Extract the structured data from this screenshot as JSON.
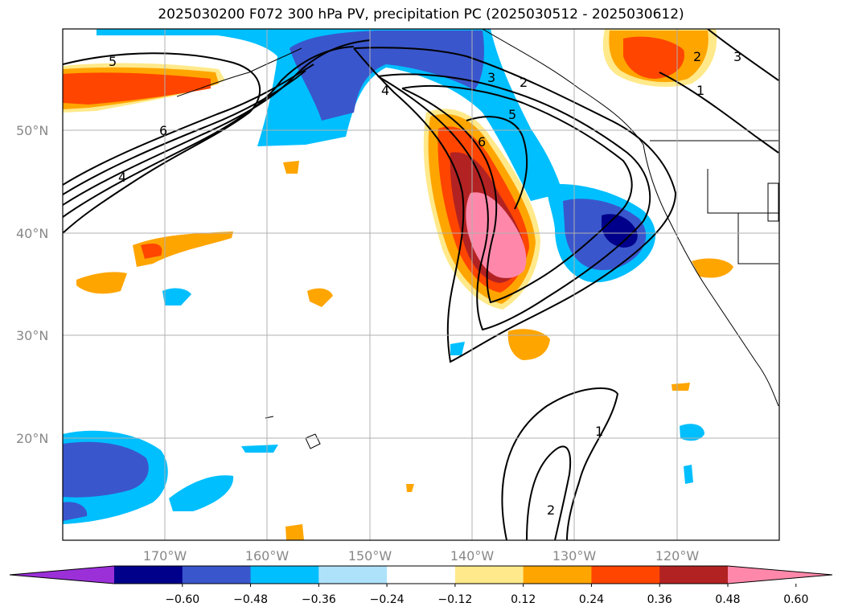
{
  "title": "2025030200 F072 300 hPa PV, precipitation PC (2025030512 - 2025030612)",
  "lat_labels": [
    "50°N",
    "40°N",
    "30°N",
    "20°N"
  ],
  "lon_labels": [
    "170°W",
    "160°W",
    "150°W",
    "140°W",
    "130°W",
    "120°W"
  ],
  "colorbar": {
    "colors": [
      "#9b30d9",
      "#00008b",
      "#3a56cc",
      "#00bfff",
      "#aee2fa",
      "#ffffff",
      "#ffe98a",
      "#ffa500",
      "#ff4500",
      "#b22222",
      "#ff88aa"
    ],
    "tick_labels": [
      "−0.60",
      "−0.48",
      "−0.36",
      "−0.24",
      "−0.12",
      "0.12",
      "0.24",
      "0.36",
      "0.48",
      "0.60"
    ]
  },
  "pv_contour_labels": [
    "5",
    "6",
    "4",
    "4",
    "3",
    "2",
    "5",
    "6",
    "2",
    "3",
    "1",
    "1",
    "2"
  ]
}
